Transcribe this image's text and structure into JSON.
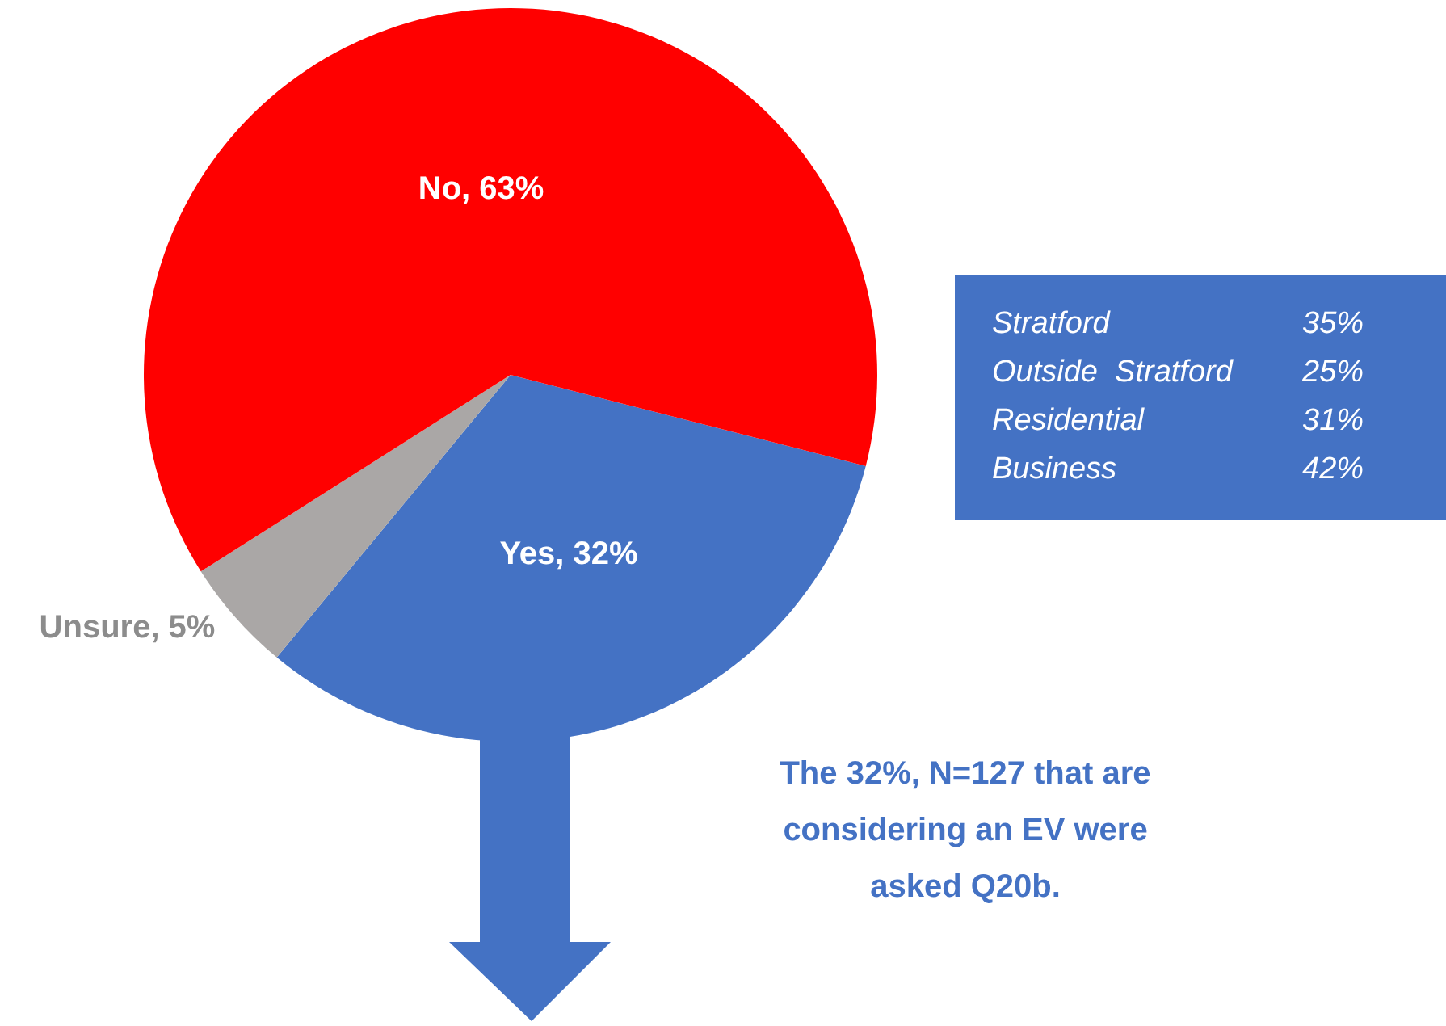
{
  "chart_data": [
    {
      "type": "pie",
      "categories": [
        "Yes",
        "Unsure",
        "No"
      ],
      "values": [
        32,
        5,
        63
      ],
      "colors": [
        "#4472c4",
        "#aaa7a6",
        "#ff0000"
      ],
      "value_labels": [
        "32%",
        "5%",
        "63%"
      ],
      "legend": false,
      "annotations": [
        "The 32%, N=127 that are considering an EV were asked Q20b."
      ]
    },
    {
      "type": "other",
      "categories": [
        "Stratford",
        "Outside  Stratford",
        "Residential",
        "Business"
      ],
      "value_labels": [
        "35%",
        "25%",
        "31%",
        "42%"
      ],
      "color": "#4472c4"
    }
  ]
}
